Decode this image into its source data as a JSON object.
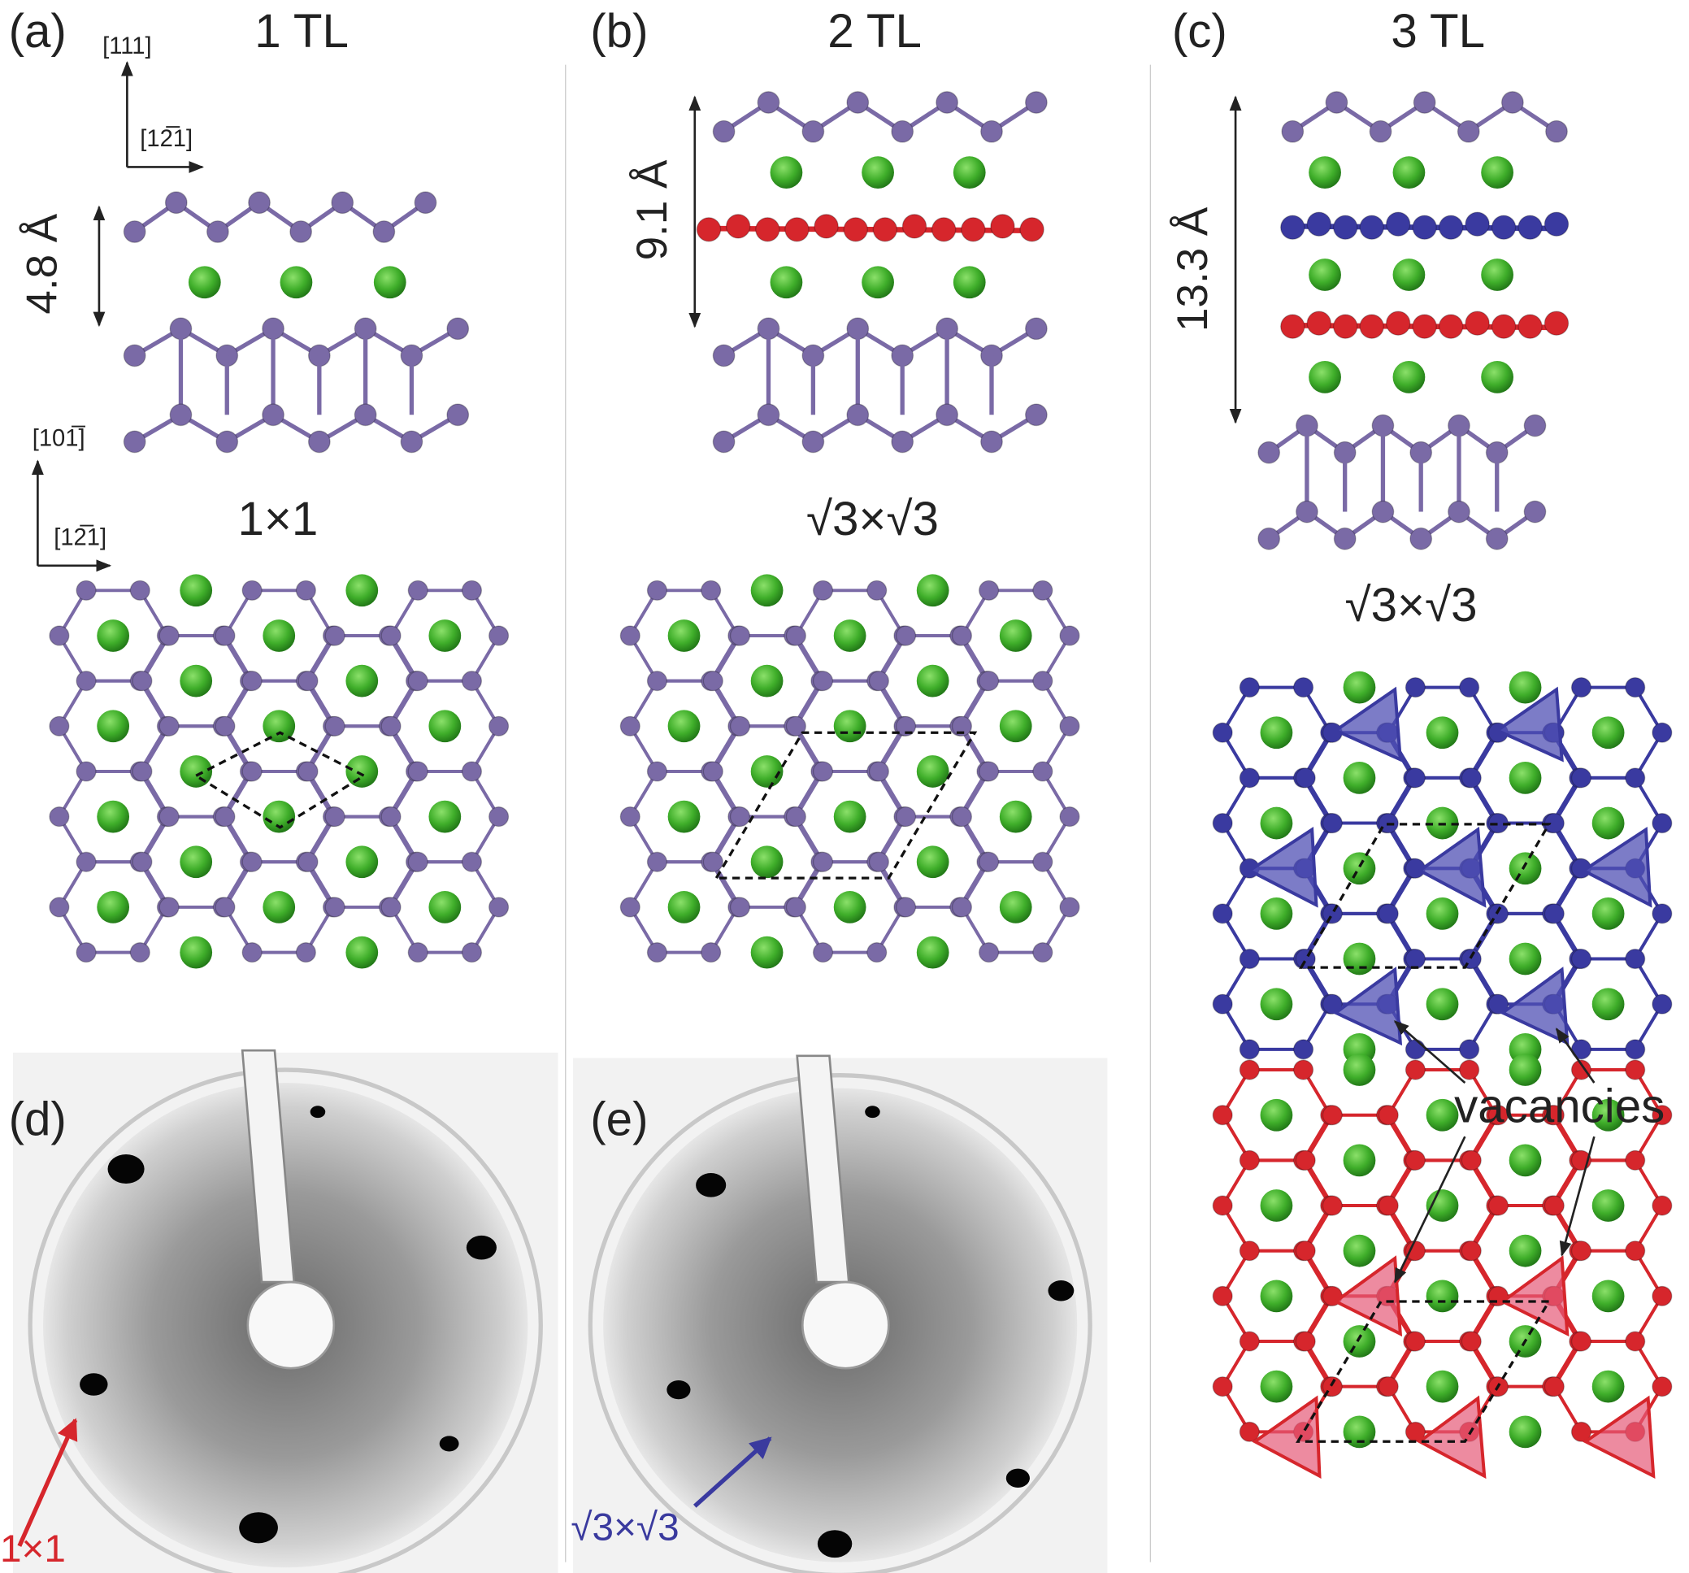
{
  "panels": [
    {
      "label": "(a)",
      "title": "1 TL",
      "thickness": "4.8 Å",
      "surface": "1×1"
    },
    {
      "label": "(b)",
      "title": "2 TL",
      "thickness": "9.1 Å",
      "surface": "√3×√3"
    },
    {
      "label": "(c)",
      "title": "3 TL",
      "thickness": "13.3 Å",
      "surface": "√3×√3"
    }
  ],
  "axes": {
    "side_up": "[111]",
    "side_right": "[12̅1]",
    "top_up": "[101̅]",
    "top_right": "[12̅1]"
  },
  "annotations": {
    "vacancies": "vacancies"
  },
  "leed": [
    {
      "label": "(d)",
      "arrow_label": "1×1"
    },
    {
      "label": "(e)",
      "arrow_label": "√3×√3"
    }
  ]
}
